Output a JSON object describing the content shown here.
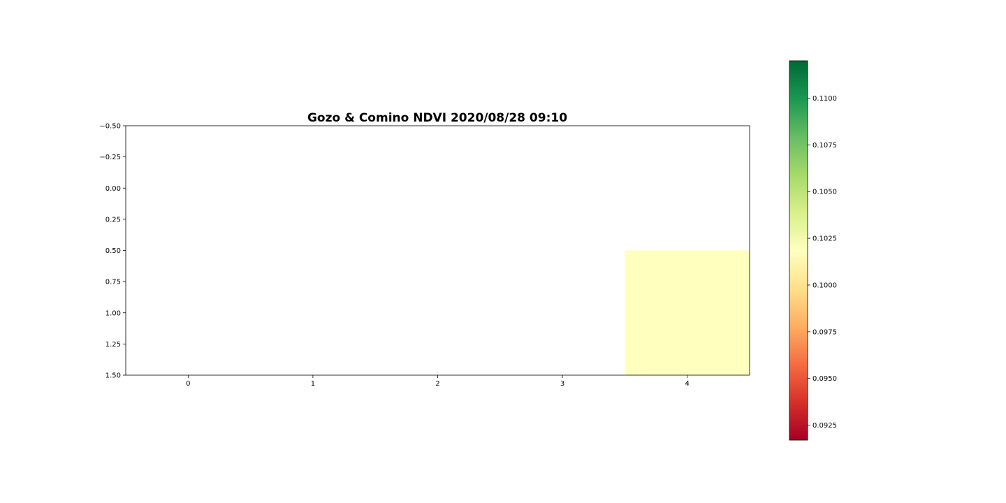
{
  "chart_data": {
    "type": "heatmap",
    "title": "Gozo & Comino NDVI 2020/08/28 09:10",
    "xlabel": "",
    "ylabel": "",
    "x_ticks": [
      "0",
      "1",
      "2",
      "3",
      "4"
    ],
    "y_ticks": [
      "−0.50",
      "−0.25",
      "0.00",
      "0.25",
      "0.50",
      "0.75",
      "1.00",
      "1.25",
      "1.50"
    ],
    "xlim": [
      -0.5,
      4.5
    ],
    "ylim": [
      1.5,
      -0.5
    ],
    "y_inverted": true,
    "grid": false,
    "cells": [
      {
        "row": 1,
        "col": 4,
        "value": 0.1017,
        "color": "#ffffbe"
      }
    ],
    "colorbar": {
      "cmap": "RdYlGn",
      "range": [
        0.0917,
        0.112
      ],
      "ticks": [
        0.0925,
        0.095,
        0.0975,
        0.1,
        0.1025,
        0.105,
        0.1075,
        0.11
      ],
      "tick_labels": [
        "0.0925",
        "0.0950",
        "0.0975",
        "0.1000",
        "0.1025",
        "0.1050",
        "0.1075",
        "0.1100"
      ],
      "stops": [
        "#a50026",
        "#d73027",
        "#f46d43",
        "#fdae61",
        "#fee08b",
        "#ffffbf",
        "#d9ef8b",
        "#a6d96a",
        "#66bd63",
        "#1a9850",
        "#006837"
      ]
    }
  }
}
